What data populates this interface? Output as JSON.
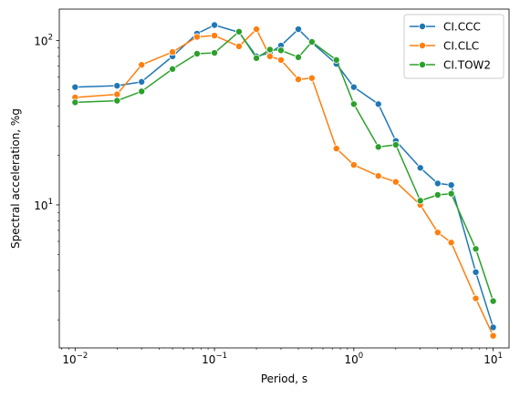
{
  "chart_data": {
    "type": "line",
    "xscale": "log",
    "yscale": "log",
    "xlabel": "Period, s",
    "ylabel": "Spectral acceleration, %g",
    "xlim": [
      0.0077,
      13.0
    ],
    "ylim": [
      1.35,
      155
    ],
    "x_major_ticks": [
      {
        "value": 0.01,
        "base": "10",
        "exp": "−2"
      },
      {
        "value": 0.1,
        "base": "10",
        "exp": "−1"
      },
      {
        "value": 1,
        "base": "10",
        "exp": "0"
      },
      {
        "value": 10,
        "base": "10",
        "exp": "1"
      }
    ],
    "y_major_ticks": [
      {
        "value": 10,
        "base": "10",
        "exp": "1"
      },
      {
        "value": 100,
        "base": "10",
        "exp": "2"
      }
    ],
    "grid": false,
    "legend_position": "top-right",
    "series": [
      {
        "name": "CI.CCC",
        "color": "#1f77b4",
        "x": [
          0.01,
          0.02,
          0.03,
          0.05,
          0.075,
          0.1,
          0.15,
          0.2,
          0.25,
          0.3,
          0.4,
          0.5,
          0.75,
          1.0,
          1.5,
          2.0,
          3.0,
          4.0,
          5.0,
          7.5,
          10.0
        ],
        "y": [
          52,
          53,
          56,
          80,
          110,
          124,
          112,
          80,
          84,
          93,
          117,
          97,
          72,
          52,
          41,
          24.5,
          16.8,
          13.5,
          13.2,
          3.9,
          1.8
        ]
      },
      {
        "name": "CI.CLC",
        "color": "#ff7f0e",
        "x": [
          0.01,
          0.02,
          0.03,
          0.05,
          0.075,
          0.1,
          0.15,
          0.2,
          0.25,
          0.3,
          0.4,
          0.5,
          0.75,
          1.0,
          1.5,
          2.0,
          3.0,
          4.0,
          5.0,
          7.5,
          10.0
        ],
        "y": [
          45,
          47,
          71,
          85,
          105,
          107,
          92,
          117,
          80,
          76,
          58,
          59,
          22,
          17.5,
          15,
          13.8,
          10,
          6.8,
          5.9,
          2.7,
          1.6
        ]
      },
      {
        "name": "CI.TOW2",
        "color": "#2ca02c",
        "x": [
          0.01,
          0.02,
          0.03,
          0.05,
          0.075,
          0.1,
          0.15,
          0.2,
          0.25,
          0.3,
          0.4,
          0.5,
          0.75,
          1.0,
          1.5,
          2.0,
          3.0,
          4.0,
          5.0,
          7.5,
          10.0
        ],
        "y": [
          42,
          43,
          49,
          67,
          83,
          84,
          113,
          78,
          88,
          87,
          79,
          98,
          76,
          41,
          22.5,
          23.2,
          10.6,
          11.5,
          11.7,
          5.4,
          2.6
        ]
      }
    ]
  }
}
